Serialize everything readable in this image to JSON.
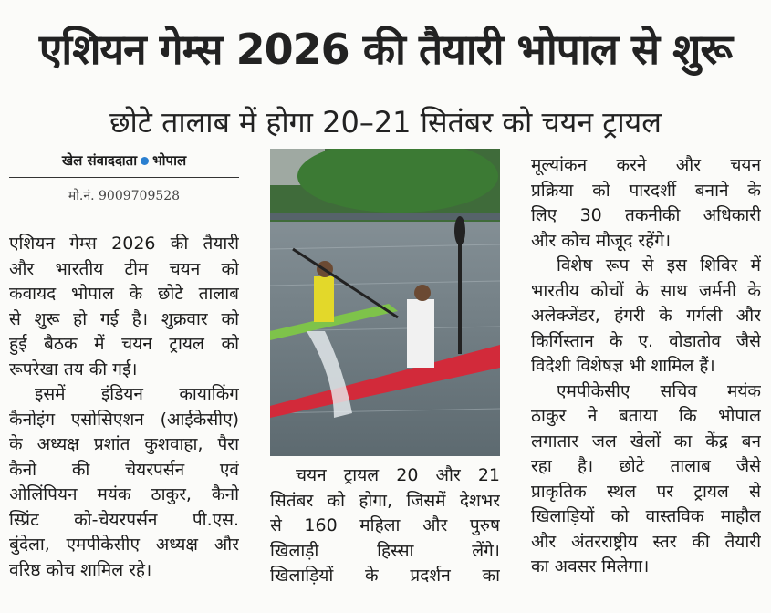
{
  "headline": "एशियन गेम्स 2026 की तैयारी भोपाल से शुरू",
  "subheadline": "छोटे तालाब में होगा 20–21 सितंबर को चयन ट्रायल",
  "byline": {
    "reporter": "खेल संवाददाता",
    "location": "भोपाल",
    "phone": "मो.नं. 9009709528",
    "dot_color": "#2a7fd0"
  },
  "photo": {
    "icon": "kayak-canoe-photo"
  },
  "columns": {
    "left": [
      [
        "एशियन गेम्स 2026 की तैयारी",
        "और भारतीय टीम चयन को",
        "कवायद भोपाल के छोटे तालाब",
        "से शुरू हो गई है। शुक्रवार को",
        "हुई बैठक में चयन ट्रायल को",
        "रूपरेखा तय की गई।"
      ],
      [
        "इसमें इंडियन कायाकिंग",
        "कैनोइंग एसोसिएशन (आईकेसीए)",
        "के अध्यक्ष प्रशांत कुशवाहा, पैरा",
        "कैनो की चेयरपर्सन एवं",
        "ओलिंपियन मयंक ठाकुर, कैनो",
        "स्प्रिंट को-चेयरपर्सन पी.एस.",
        "बुंदेला, एमपीकेसीए अध्यक्ष और",
        "वरिष्ठ कोच शामिल रहे।"
      ]
    ],
    "middle": [
      [
        "चयन ट्रायल 20 और 21",
        "सितंबर को होगा, जिसमें देशभर",
        "से 160 महिला और पुरुष",
        "खिलाड़ी हिस्सा लेंगे।",
        "खिलाड़ियों के प्रदर्शन का"
      ]
    ],
    "right": [
      [
        "मूल्यांकन करने और चयन",
        "प्रक्रिया को पारदर्शी बनाने के",
        "लिए 30 तकनीकी अधिकारी",
        "और कोच मौजूद रहेंगे।"
      ],
      [
        "विशेष रूप से इस शिविर में",
        "भारतीय कोचों के साथ जर्मनी के",
        "अलेक्जेंडर, हंगरी के गर्गली और",
        "किर्गिस्तान के ए. वोडातोव जैसे",
        "विदेशी विशेषज्ञ भी शामिल हैं।"
      ],
      [
        "एमपीकेसीए सचिव मयंक",
        "ठाकुर ने बताया कि भोपाल",
        "लगातार जल खेलों का केंद्र बन",
        "रहा है। छोटे तालाब जैसे",
        "प्राकृतिक स्थल पर ट्रायल से",
        "खिलाड़ियों को वास्तविक माहौल",
        "और अंतरराष्ट्रीय स्तर की तैयारी",
        "का अवसर मिलेगा।"
      ]
    ]
  }
}
